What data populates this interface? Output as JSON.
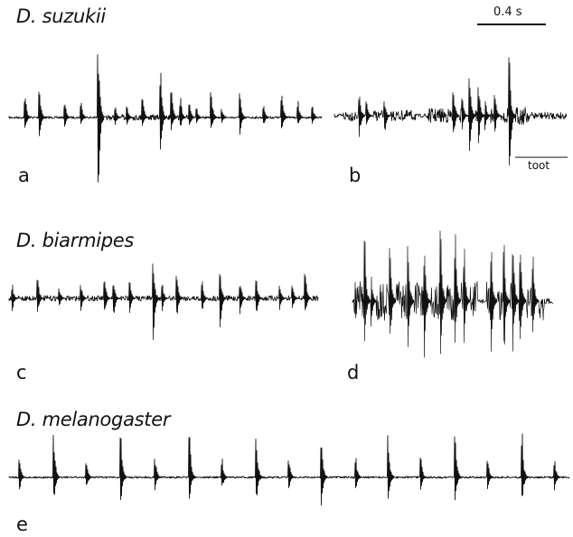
{
  "labels": {
    "species_a": "D. suzukii",
    "species_c": "D. biarmipes",
    "species_e": "D. melanogaster",
    "panel_a": "a",
    "panel_b": "b",
    "panel_c": "c",
    "panel_d": "d",
    "panel_e": "e"
  },
  "scale_bar": {
    "label": "0.4 s"
  },
  "annotation": {
    "label": "toot"
  },
  "colors": {
    "trace": "#111111",
    "background": "#ffffff"
  }
}
